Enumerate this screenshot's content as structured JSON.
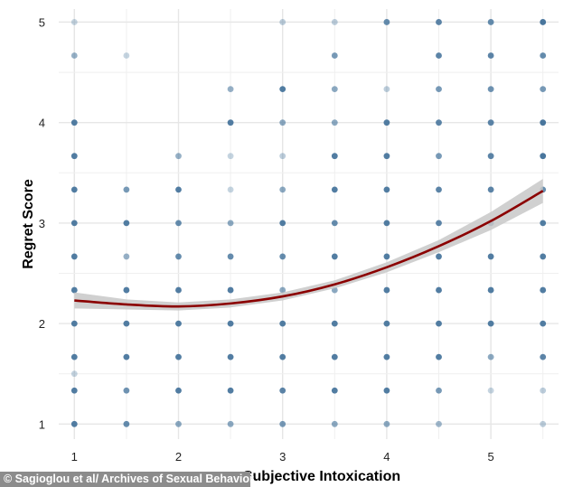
{
  "chart_data": {
    "type": "scatter",
    "xlabel": "Subjective Intoxication",
    "ylabel": "Regret Score",
    "xlim": [
      0.85,
      5.65
    ],
    "ylim": [
      0.85,
      5.13
    ],
    "xticks": [
      1,
      2,
      3,
      4,
      5
    ],
    "yticks": [
      1,
      2,
      3,
      4,
      5
    ],
    "grid": true,
    "point_color": "#3f6f98",
    "points": [
      [
        1,
        5,
        0.3
      ],
      [
        1,
        4.667,
        0.55
      ],
      [
        1,
        4,
        0.9
      ],
      [
        1,
        3.667,
        0.9
      ],
      [
        1,
        3.333,
        0.9
      ],
      [
        1,
        3,
        0.9
      ],
      [
        1,
        2.667,
        0.9
      ],
      [
        1,
        2.333,
        0.9
      ],
      [
        1,
        2,
        0.9
      ],
      [
        1,
        1.667,
        0.9
      ],
      [
        1,
        1.5,
        0.3
      ],
      [
        1,
        1.333,
        0.9
      ],
      [
        1,
        1,
        0.9
      ],
      [
        1.5,
        4.667,
        0.3
      ],
      [
        1.5,
        3.333,
        0.7
      ],
      [
        1.5,
        3,
        0.9
      ],
      [
        1.5,
        2.667,
        0.55
      ],
      [
        1.5,
        2.333,
        0.9
      ],
      [
        1.5,
        2,
        0.9
      ],
      [
        1.5,
        1.667,
        0.9
      ],
      [
        1.5,
        1.333,
        0.75
      ],
      [
        1.5,
        1,
        0.8
      ],
      [
        2,
        3.667,
        0.55
      ],
      [
        2,
        3.333,
        0.9
      ],
      [
        2,
        3,
        0.8
      ],
      [
        2,
        2.667,
        0.8
      ],
      [
        2,
        2.333,
        0.9
      ],
      [
        2,
        2,
        0.9
      ],
      [
        2,
        1.667,
        0.9
      ],
      [
        2,
        1.333,
        0.9
      ],
      [
        2,
        1,
        0.6
      ],
      [
        2.5,
        4.333,
        0.55
      ],
      [
        2.5,
        4,
        0.9
      ],
      [
        2.5,
        3.667,
        0.3
      ],
      [
        2.5,
        3.333,
        0.3
      ],
      [
        2.5,
        3,
        0.6
      ],
      [
        2.5,
        2.667,
        0.8
      ],
      [
        2.5,
        2.333,
        0.9
      ],
      [
        2.5,
        2,
        0.9
      ],
      [
        2.5,
        1.667,
        0.9
      ],
      [
        2.5,
        1.333,
        0.9
      ],
      [
        2.5,
        1,
        0.6
      ],
      [
        3,
        5,
        0.35
      ],
      [
        3,
        4.333,
        0.9
      ],
      [
        3,
        4,
        0.6
      ],
      [
        3,
        3.667,
        0.35
      ],
      [
        3,
        3.333,
        0.6
      ],
      [
        3,
        3,
        0.9
      ],
      [
        3,
        2.667,
        0.8
      ],
      [
        3,
        2.333,
        0.6
      ],
      [
        3,
        2,
        0.9
      ],
      [
        3,
        1.667,
        0.9
      ],
      [
        3,
        1.333,
        0.85
      ],
      [
        3,
        1,
        0.7
      ],
      [
        3.5,
        5,
        0.35
      ],
      [
        3.5,
        4.667,
        0.7
      ],
      [
        3.5,
        4.333,
        0.6
      ],
      [
        3.5,
        4,
        0.6
      ],
      [
        3.5,
        3.667,
        0.9
      ],
      [
        3.5,
        3.333,
        0.9
      ],
      [
        3.5,
        3,
        0.8
      ],
      [
        3.5,
        2.667,
        0.9
      ],
      [
        3.5,
        2.333,
        0.6
      ],
      [
        3.5,
        2,
        0.9
      ],
      [
        3.5,
        1.667,
        0.9
      ],
      [
        3.5,
        1.333,
        0.9
      ],
      [
        3.5,
        1,
        0.6
      ],
      [
        4,
        5,
        0.8
      ],
      [
        4,
        4.333,
        0.35
      ],
      [
        4,
        4,
        0.9
      ],
      [
        4,
        3.667,
        0.9
      ],
      [
        4,
        3.333,
        0.9
      ],
      [
        4,
        3,
        0.9
      ],
      [
        4,
        2.667,
        0.9
      ],
      [
        4,
        2.333,
        0.9
      ],
      [
        4,
        2,
        0.9
      ],
      [
        4,
        1.667,
        0.9
      ],
      [
        4,
        1.333,
        0.9
      ],
      [
        4,
        1,
        0.6
      ],
      [
        4.5,
        5,
        0.85
      ],
      [
        4.5,
        4.667,
        0.85
      ],
      [
        4.5,
        4.333,
        0.7
      ],
      [
        4.5,
        4,
        0.85
      ],
      [
        4.5,
        3.667,
        0.7
      ],
      [
        4.5,
        3.333,
        0.85
      ],
      [
        4.5,
        3,
        0.85
      ],
      [
        4.5,
        2.667,
        0.9
      ],
      [
        4.5,
        2.333,
        0.9
      ],
      [
        4.5,
        2,
        0.9
      ],
      [
        4.5,
        1.667,
        0.9
      ],
      [
        4.5,
        1.333,
        0.7
      ],
      [
        4.5,
        1,
        0.5
      ],
      [
        5,
        5,
        0.8
      ],
      [
        5,
        4.667,
        0.85
      ],
      [
        5,
        4.333,
        0.75
      ],
      [
        5,
        4,
        0.85
      ],
      [
        5,
        3.667,
        0.85
      ],
      [
        5,
        3.333,
        0.85
      ],
      [
        5,
        3,
        0.9
      ],
      [
        5,
        2.667,
        0.9
      ],
      [
        5,
        2.333,
        0.9
      ],
      [
        5,
        2,
        0.9
      ],
      [
        5,
        1.667,
        0.6
      ],
      [
        5,
        1.333,
        0.3
      ],
      [
        5.5,
        5,
        0.95
      ],
      [
        5.5,
        4.667,
        0.8
      ],
      [
        5.5,
        4.333,
        0.7
      ],
      [
        5.5,
        4,
        0.95
      ],
      [
        5.5,
        3.667,
        0.95
      ],
      [
        5.5,
        3.333,
        0.8
      ],
      [
        5.5,
        3,
        0.9
      ],
      [
        5.5,
        2.667,
        0.9
      ],
      [
        5.5,
        2.333,
        0.9
      ],
      [
        5.5,
        2,
        0.9
      ],
      [
        5.5,
        1.667,
        0.85
      ],
      [
        5.5,
        1.333,
        0.35
      ],
      [
        5.5,
        1,
        0.35
      ]
    ],
    "fit": {
      "type": "quadratic",
      "color": "#8b0000",
      "band_color": "#c8c8c8",
      "x": [
        1,
        1.5,
        2,
        2.5,
        3,
        3.5,
        4,
        4.5,
        5,
        5.5
      ],
      "y": [
        2.23,
        2.19,
        2.17,
        2.2,
        2.27,
        2.39,
        2.56,
        2.77,
        3.02,
        3.32
      ],
      "lower": [
        2.15,
        2.14,
        2.13,
        2.16,
        2.23,
        2.35,
        2.51,
        2.71,
        2.93,
        3.2
      ],
      "upper": [
        2.31,
        2.24,
        2.21,
        2.24,
        2.31,
        2.43,
        2.61,
        2.83,
        3.11,
        3.44
      ]
    }
  },
  "credit": "© Sagioglou et al/ Archives of Sexual Behavior"
}
